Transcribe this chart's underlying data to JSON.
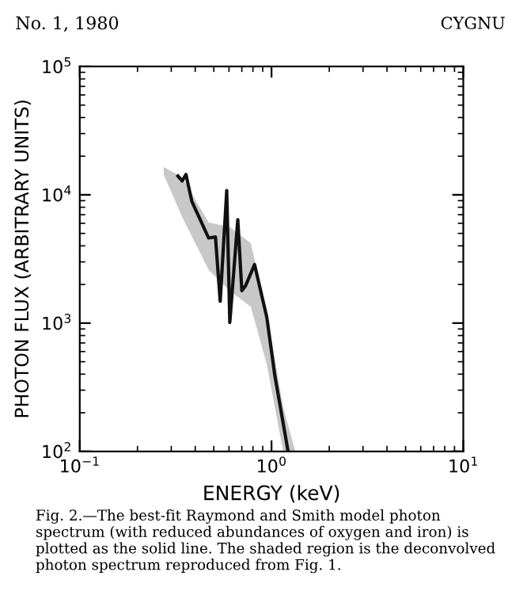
{
  "chart_data": {
    "type": "line",
    "xlabel": "ENERGY (keV)",
    "ylabel": "PHOTON FLUX (ARBITRARY UNITS)",
    "log": "xy",
    "xlim": [
      0.1,
      10
    ],
    "ylim": [
      100,
      100000
    ],
    "xticks": [
      {
        "value": 0.1,
        "label": "10$^{−1}$"
      },
      {
        "value": 1,
        "label": "10$^{0}$"
      },
      {
        "value": 10,
        "label": "10$^{1}$"
      }
    ],
    "yticks": [
      {
        "value": 100,
        "label": "10$^{2}$"
      },
      {
        "value": 1000,
        "label": "10$^{3}$"
      },
      {
        "value": 10000,
        "label": "10$^{4}$"
      },
      {
        "value": 100000,
        "label": "10$^{5}$"
      }
    ],
    "grid": false,
    "marker": "none",
    "line_style": "solid",
    "series": [
      {
        "type": "area",
        "color": "#c8c8c8",
        "x": [
          0.274,
          0.342,
          0.47,
          0.606,
          0.78,
          0.945,
          1.15,
          1.33
        ],
        "values": [
          null,
          null,
          null,
          null,
          null,
          null,
          null,
          null
        ],
        "lower": [
          14400,
          6700,
          2600,
          1790,
          1340,
          475,
          100,
          100
        ],
        "upper": [
          16500,
          13700,
          6100,
          5600,
          4200,
          1220,
          222,
          100
        ]
      },
      {
        "color": "#111111",
        "x": [
          0.325,
          0.342,
          0.358,
          0.384,
          0.47,
          0.51,
          0.54,
          0.584,
          0.606,
          0.667,
          0.7,
          0.733,
          0.816,
          0.945,
          1.04,
          1.22
        ],
        "values": [
          14000,
          12800,
          14400,
          8900,
          4600,
          4700,
          1480,
          10800,
          1010,
          6400,
          1790,
          1960,
          2860,
          1110,
          392,
          100
        ]
      }
    ],
    "annotations": [
      "No. 1, 1980",
      "CYGNU",
      "Fig. 2.—The best-fit Raymond and Smith model photon spectrum (with reduced abundances of oxygen and iron) is plotted as the solid line. The shaded region is the deconvolved photon spectrum reproduced from Fig. 1."
    ]
  }
}
